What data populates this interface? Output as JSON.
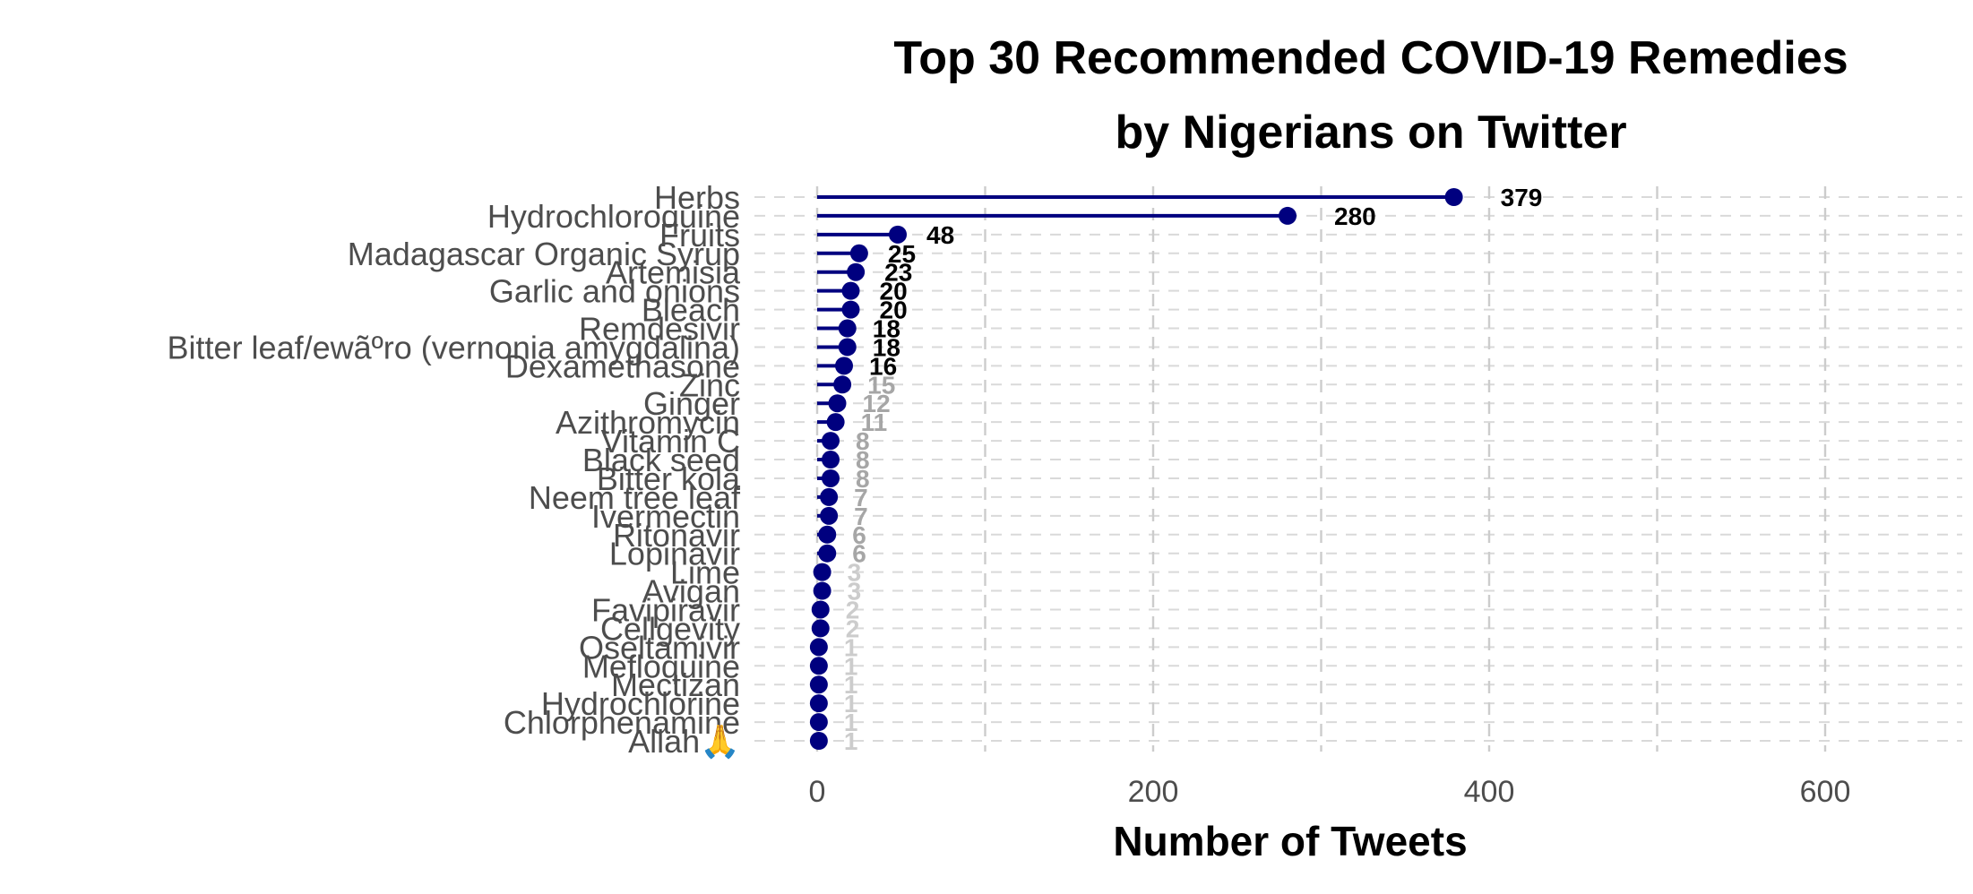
{
  "chart_data": {
    "type": "lollipop",
    "title": "Top 30 Recommended COVID-19 Remedies\nby Nigerians on Twitter",
    "xlabel": "Number of Tweets",
    "ylabel": "",
    "xlim": [
      0,
      680
    ],
    "x_ticks": [
      0,
      200,
      400,
      600
    ],
    "grid": true,
    "orientation": "horizontal",
    "colors": {
      "stem": "#00007f",
      "point": "#00007f",
      "label_high": "#000000",
      "label_mid": "#a6a6a6",
      "label_low": "#cccccc"
    },
    "categories": [
      "Herbs",
      "Hydrochloroquine",
      "Fruits",
      "Madagascar Organic Syrup",
      "Artemisia",
      "Garlic and onions",
      "Bleach",
      "Remdesivir",
      "Bitter leaf/ewãºro (vernonia amygdalina)",
      "Dexamethasone",
      "Zinc",
      "Ginger",
      "Azithromycin",
      "Vitamin C",
      "Black seed",
      "Bitter kola",
      "Neem tree leaf",
      "Ivermectin",
      "Ritonavir",
      "Lopinavir",
      "Lime",
      "Avigan",
      "Favipiravir",
      "Cellgevity",
      "Oseltamivir",
      "Mefloquine",
      "Mectizan",
      "Hydrochlorine",
      "Chlorphenamine",
      "Allah🙏"
    ],
    "values": [
      379,
      280,
      48,
      25,
      23,
      20,
      20,
      18,
      18,
      16,
      15,
      12,
      11,
      8,
      8,
      8,
      7,
      7,
      6,
      6,
      3,
      3,
      2,
      2,
      1,
      1,
      1,
      1,
      1,
      1
    ]
  }
}
